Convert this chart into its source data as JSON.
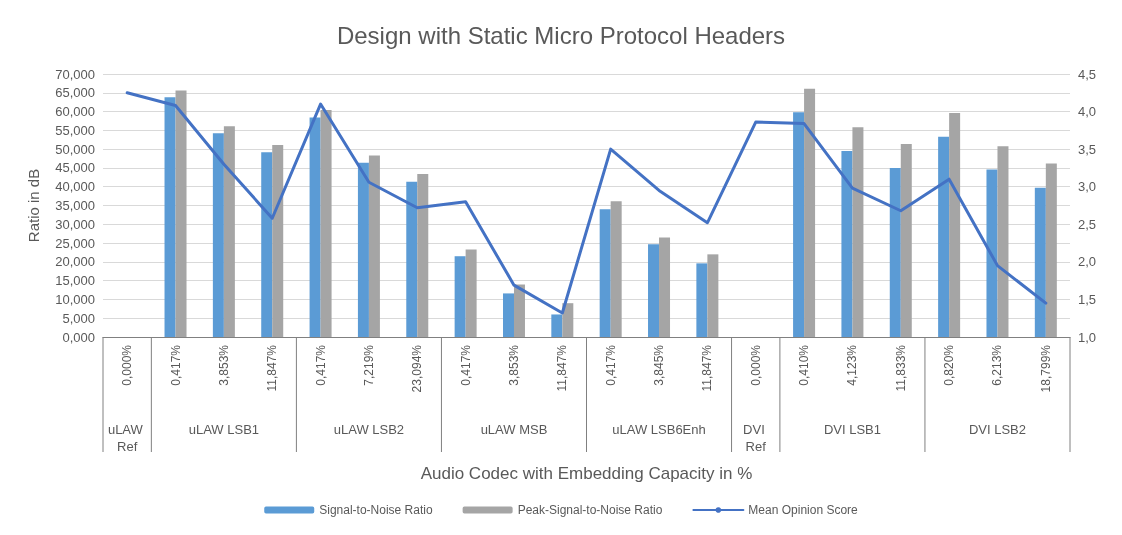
{
  "chart_data": {
    "type": "bar",
    "title": "Design with Static Micro Protocol Headers",
    "xlabel": "Audio Codec with Embedding Capacity in %",
    "ylabel": "Ratio in dB",
    "categories": [
      "0,000%",
      "0,417%",
      "3,853%",
      "11,847%",
      "0,417%",
      "7,219%",
      "23,094%",
      "0,417%",
      "3,853%",
      "11,847%",
      "0,417%",
      "3,845%",
      "11,847%",
      "0,000%",
      "0,410%",
      "4,123%",
      "11,833%",
      "0,820%",
      "6,213%",
      "18,799%"
    ],
    "annotations": [
      "uLAW Ref",
      "uLAW LSB1",
      "uLAW LSB2",
      "uLAW MSB",
      "uLAW LSB6Enh",
      "DVI Ref",
      "DVI LSB1",
      "DVI LSB2"
    ],
    "series": [
      {
        "name": "Signal-to-Noise Ratio",
        "color": "#5b9bd5",
        "values": [
          null,
          63.8,
          54.2,
          49.2,
          58.4,
          46.4,
          41.3,
          21.5,
          11.6,
          6.0,
          34.0,
          24.7,
          19.6,
          null,
          59.8,
          49.5,
          45.0,
          53.3,
          44.6,
          39.7
        ]
      },
      {
        "name": "Peak-Signal-to-Noise Ratio",
        "color": "#a5a5a5",
        "values": [
          null,
          65.6,
          56.1,
          51.1,
          60.4,
          48.3,
          43.4,
          23.3,
          14.0,
          9.0,
          36.1,
          26.5,
          22.0,
          null,
          66.1,
          55.8,
          51.4,
          59.6,
          50.8,
          46.2
        ]
      },
      {
        "name": "Mean Opinion Score",
        "type": "line",
        "axis": "y2",
        "color": "#4472c4",
        "values": [
          4.25,
          4.08,
          3.3,
          2.58,
          4.1,
          3.06,
          2.72,
          2.8,
          1.69,
          1.32,
          3.5,
          2.95,
          2.52,
          3.86,
          3.84,
          2.98,
          2.68,
          3.1,
          1.95,
          1.45
        ]
      }
    ],
    "ylim": [
      0,
      70
    ],
    "yticks": [
      {
        "value": 0,
        "label": "0,000"
      },
      {
        "value": 5,
        "label": "5,000"
      },
      {
        "value": 10,
        "label": "10,000"
      },
      {
        "value": 15,
        "label": "15,000"
      },
      {
        "value": 20,
        "label": "20,000"
      },
      {
        "value": 25,
        "label": "25,000"
      },
      {
        "value": 30,
        "label": "30,000"
      },
      {
        "value": 35,
        "label": "35,000"
      },
      {
        "value": 40,
        "label": "40,000"
      },
      {
        "value": 45,
        "label": "45,000"
      },
      {
        "value": 50,
        "label": "50,000"
      },
      {
        "value": 55,
        "label": "55,000"
      },
      {
        "value": 60,
        "label": "60,000"
      },
      {
        "value": 65,
        "label": "65,000"
      },
      {
        "value": 70,
        "label": "70,000"
      }
    ],
    "y2lim": [
      1,
      4.5
    ],
    "y2ticks": [
      {
        "value": 1,
        "label": "1,0"
      },
      {
        "value": 1.5,
        "label": "1,5"
      },
      {
        "value": 2,
        "label": "2,0"
      },
      {
        "value": 2.5,
        "label": "2,5"
      },
      {
        "value": 3,
        "label": "3,0"
      },
      {
        "value": 3.5,
        "label": "3,5"
      },
      {
        "value": 4,
        "label": "4,0"
      },
      {
        "value": 4.5,
        "label": "4,5"
      }
    ],
    "grid": "y",
    "legend": "bottom",
    "marker": "none",
    "line_style": "solid"
  }
}
